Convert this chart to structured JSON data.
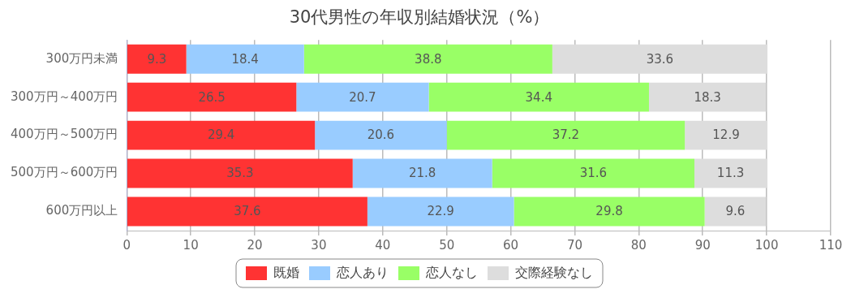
{
  "chart_data": {
    "type": "bar",
    "orientation": "horizontal",
    "stacked": true,
    "title": "30代男性の年収別結婚状況（%）",
    "categories": [
      "300万円未満",
      "300万円～400万円",
      "400万円～500万円",
      "500万円～600万円",
      "600万円以上"
    ],
    "series": [
      {
        "name": "既婚",
        "color": "#ff3333",
        "values": [
          9.3,
          26.5,
          29.4,
          35.3,
          37.6
        ]
      },
      {
        "name": "恋人あり",
        "color": "#99ccff",
        "values": [
          18.4,
          20.7,
          20.6,
          21.8,
          22.9
        ]
      },
      {
        "name": "恋人なし",
        "color": "#99ff66",
        "values": [
          38.8,
          34.4,
          37.2,
          31.6,
          29.8
        ]
      },
      {
        "name": "交際経験なし",
        "color": "#dddddd",
        "values": [
          33.6,
          18.3,
          12.9,
          11.3,
          9.6
        ]
      }
    ],
    "xlim": [
      0,
      110
    ],
    "xticks": [
      0,
      10,
      20,
      30,
      40,
      50,
      60,
      70,
      80,
      90,
      100,
      110
    ],
    "grid": "x",
    "legend": "bottom",
    "data_labels": true
  }
}
